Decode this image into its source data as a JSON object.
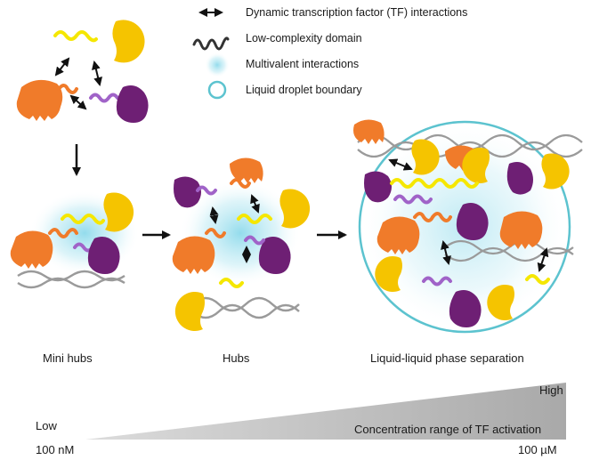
{
  "legend": {
    "items": [
      {
        "icon": "double-arrow-icon",
        "label": "Dynamic transcription factor (TF) interactions"
      },
      {
        "icon": "squiggle-line-icon",
        "label": "Low-complexity domain"
      },
      {
        "icon": "glow-dot-icon",
        "label": "Multivalent interactions"
      },
      {
        "icon": "ring-icon",
        "label": "Liquid droplet boundary"
      }
    ]
  },
  "stages": [
    {
      "label": "Mini hubs"
    },
    {
      "label": "Hubs"
    },
    {
      "label": "Liquid-liquid phase separation"
    }
  ],
  "concentration": {
    "low_label": "Low",
    "high_label": "High",
    "low_value": "100 nM",
    "high_value": "100 µM",
    "bar_label": "Concentration range of TF activation"
  },
  "colors": {
    "orange": "#f07b2a",
    "purple": "#6e1f74",
    "yellow": "#f5c400",
    "yellow_tail": "#fff04d",
    "violet_tail": "#a063c8",
    "glow": "#6fd0e6",
    "ring": "#5cc3cf",
    "dna": "#9a9a9a",
    "ramp": "#bdbdbd"
  }
}
